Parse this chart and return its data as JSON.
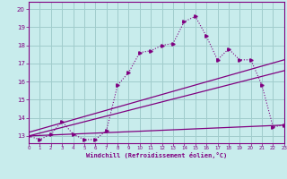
{
  "xlabel": "Windchill (Refroidissement éolien,°C)",
  "bg_color": "#c8ecec",
  "line_color": "#800080",
  "grid_color": "#a0cccc",
  "x_ticks": [
    0,
    1,
    2,
    3,
    4,
    5,
    6,
    7,
    8,
    9,
    10,
    11,
    12,
    13,
    14,
    15,
    16,
    17,
    18,
    19,
    20,
    21,
    22,
    23
  ],
  "y_ticks": [
    13,
    14,
    15,
    16,
    17,
    18,
    19,
    20
  ],
  "ylim": [
    12.6,
    20.4
  ],
  "xlim": [
    0,
    23
  ],
  "line1_x": [
    0,
    1,
    2,
    3,
    4,
    5,
    6,
    7,
    8,
    9,
    10,
    11,
    12,
    13,
    14,
    15,
    16,
    17,
    18,
    19,
    20,
    21,
    22,
    23
  ],
  "line1_y": [
    13.0,
    12.8,
    13.1,
    13.8,
    13.1,
    12.8,
    12.8,
    13.3,
    15.8,
    16.5,
    17.6,
    17.7,
    18.0,
    18.1,
    19.3,
    19.6,
    18.5,
    17.2,
    17.8,
    17.2,
    17.2,
    15.8,
    13.5,
    13.6
  ],
  "line2_x": [
    0,
    23
  ],
  "line2_y": [
    13.2,
    17.2
  ],
  "line3_x": [
    0,
    23
  ],
  "line3_y": [
    13.0,
    16.6
  ],
  "line4_x": [
    0,
    23
  ],
  "line4_y": [
    13.0,
    13.6
  ]
}
